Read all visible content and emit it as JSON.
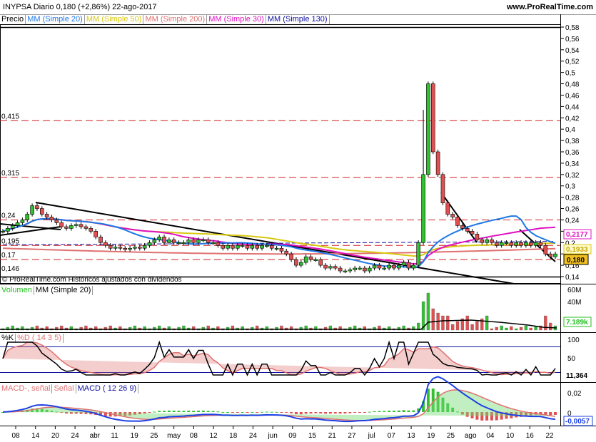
{
  "header": {
    "ticker_line": "INYPSA   Diario   0,180 (+2,86%)   22-ago-2017",
    "url": "www.ProRealTime.com"
  },
  "price_panel": {
    "legend": [
      {
        "label": "Precio",
        "color": "#000000"
      },
      {
        "label": "MM (Simple 20)",
        "color": "#1e78e6"
      },
      {
        "label": "MM (Simple 50)",
        "color": "#d8c810"
      },
      {
        "label": "MM (Simple 200)",
        "color": "#e07070"
      },
      {
        "label": "MM (Simple 30)",
        "color": "#e010c0"
      },
      {
        "label": "MM (Simple 130)",
        "color": "#1010a0"
      }
    ],
    "copyright": "© ProRealTime.com  Históricos ajustados con dividendos",
    "left_levels": [
      "0,415",
      "0,315",
      "0,24",
      "0,195",
      "0,17",
      "0,146"
    ],
    "y_ticks": [
      "0,58",
      "0,56",
      "0,54",
      "0,52",
      "0,5",
      "0,48",
      "0,46",
      "0,44",
      "0,42",
      "0,4",
      "0,38",
      "0,36",
      "0,34",
      "0,32",
      "0,3",
      "0,28",
      "0,26",
      "0,24",
      "0,22",
      "0,2",
      "0,18",
      "0,16",
      "0,14"
    ],
    "badges": [
      {
        "text": "0,2177",
        "color": "#e010c0"
      },
      {
        "text": "0,1933",
        "color": "#d8c810"
      },
      {
        "text": "0,180",
        "color": "#000000"
      }
    ]
  },
  "volume_panel": {
    "legend": [
      {
        "label": "Volumen",
        "color": "#20c020"
      },
      {
        "label": "MM (Simple 20)",
        "color": "#000000"
      }
    ],
    "y_ticks": [
      "60M",
      "40M"
    ],
    "badge": "7.189k",
    "badge_color": "#20c020"
  },
  "stoch_panel": {
    "legend": [
      {
        "label": "%K",
        "color": "#000000"
      },
      {
        "label": "%D ( 14 3 5)",
        "color": "#e07070"
      }
    ],
    "y_ticks": [
      "100",
      "50"
    ],
    "badge": "11,364"
  },
  "macd_panel": {
    "legend": [
      {
        "label": "MACD-, señal",
        "color": "#e07070"
      },
      {
        "label": "Señal",
        "color": "#e07070"
      },
      {
        "label": "MACD ( 12 26 9)",
        "color": "#1010a0"
      }
    ],
    "y_ticks": [
      "0,02",
      "0"
    ],
    "badge": "-0,0057",
    "badge_color": "#1e40e6"
  },
  "x_axis": {
    "labels": [
      "08",
      "14",
      "20",
      "24",
      "abr",
      "11",
      "19",
      "25",
      "may",
      "08",
      "12",
      "18",
      "24",
      "jun",
      "09",
      "15",
      "21",
      "27",
      "jul",
      "07",
      "13",
      "19",
      "25",
      "ago",
      "04",
      "10",
      "16",
      "22"
    ]
  },
  "chart_data": {
    "type": "candlestick",
    "y_range": [
      0.14,
      0.58
    ],
    "price_close_last": 0.18,
    "change_pct": 2.86,
    "date": "22-ago-2017",
    "horizontal_levels": [
      0.415,
      0.315,
      0.24,
      0.195,
      0.17,
      0.146
    ],
    "close": [
      0.22,
      0.225,
      0.23,
      0.235,
      0.24,
      0.25,
      0.265,
      0.26,
      0.25,
      0.245,
      0.24,
      0.235,
      0.228,
      0.225,
      0.23,
      0.232,
      0.228,
      0.225,
      0.22,
      0.21,
      0.2,
      0.195,
      0.19,
      0.192,
      0.19,
      0.188,
      0.19,
      0.192,
      0.19,
      0.195,
      0.2,
      0.205,
      0.21,
      0.2,
      0.205,
      0.2,
      0.2,
      0.2,
      0.205,
      0.2,
      0.205,
      0.205,
      0.2,
      0.2,
      0.195,
      0.19,
      0.195,
      0.19,
      0.195,
      0.195,
      0.19,
      0.195,
      0.19,
      0.195,
      0.195,
      0.19,
      0.19,
      0.185,
      0.18,
      0.17,
      0.16,
      0.165,
      0.175,
      0.17,
      0.17,
      0.16,
      0.155,
      0.158,
      0.155,
      0.15,
      0.15,
      0.152,
      0.155,
      0.155,
      0.15,
      0.155,
      0.16,
      0.155,
      0.155,
      0.16,
      0.155,
      0.16,
      0.165,
      0.155,
      0.16,
      0.2,
      0.32,
      0.48,
      0.36,
      0.32,
      0.27,
      0.25,
      0.245,
      0.23,
      0.225,
      0.22,
      0.215,
      0.205,
      0.2,
      0.205,
      0.2,
      0.195,
      0.2,
      0.2,
      0.195,
      0.2,
      0.195,
      0.2,
      0.195,
      0.2,
      0.195,
      0.18,
      0.175,
      0.18
    ]
  }
}
